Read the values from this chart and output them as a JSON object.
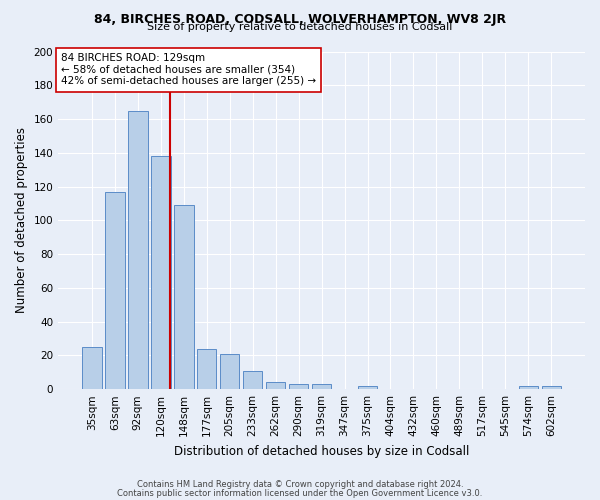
{
  "title": "84, BIRCHES ROAD, CODSALL, WOLVERHAMPTON, WV8 2JR",
  "subtitle": "Size of property relative to detached houses in Codsall",
  "xlabel": "Distribution of detached houses by size in Codsall",
  "ylabel": "Number of detached properties",
  "categories": [
    "35sqm",
    "63sqm",
    "92sqm",
    "120sqm",
    "148sqm",
    "177sqm",
    "205sqm",
    "233sqm",
    "262sqm",
    "290sqm",
    "319sqm",
    "347sqm",
    "375sqm",
    "404sqm",
    "432sqm",
    "460sqm",
    "489sqm",
    "517sqm",
    "545sqm",
    "574sqm",
    "602sqm"
  ],
  "values": [
    25,
    117,
    165,
    138,
    109,
    24,
    21,
    11,
    4,
    3,
    3,
    0,
    2,
    0,
    0,
    0,
    0,
    0,
    0,
    2,
    2
  ],
  "bar_color": "#b8cfe8",
  "bar_edge_color": "#5b8cc8",
  "annotation_line_color": "#cc0000",
  "annotation_box_text": "84 BIRCHES ROAD: 129sqm\n← 58% of detached houses are smaller (354)\n42% of semi-detached houses are larger (255) →",
  "footer_line1": "Contains HM Land Registry data © Crown copyright and database right 2024.",
  "footer_line2": "Contains public sector information licensed under the Open Government Licence v3.0.",
  "background_color": "#e8eef8",
  "grid_color": "#ffffff",
  "ylim": [
    0,
    200
  ],
  "yticks": [
    0,
    20,
    40,
    60,
    80,
    100,
    120,
    140,
    160,
    180,
    200
  ],
  "red_line_x": 3.42
}
